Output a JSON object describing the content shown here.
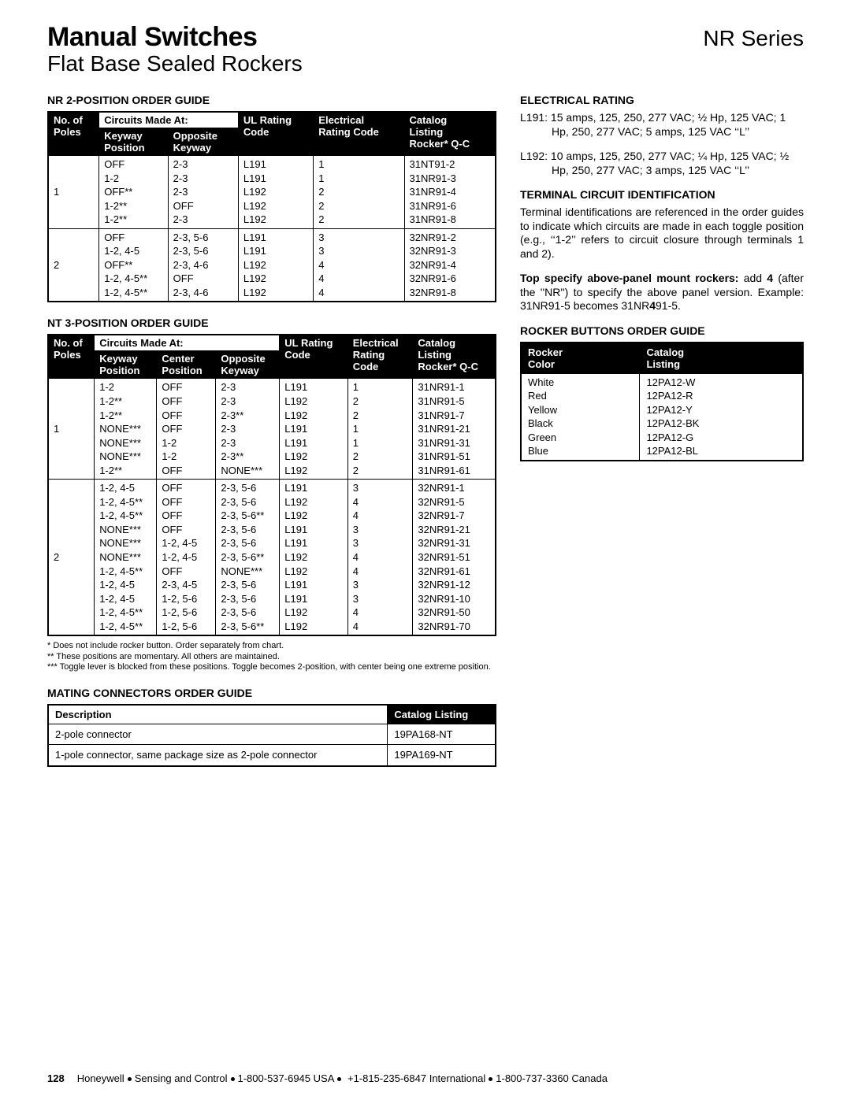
{
  "header": {
    "title1": "Manual Switches",
    "title2": "Flat Base Sealed Rockers",
    "series": "NR Series"
  },
  "nr2": {
    "title": "NR 2-POSITION ORDER GUIDE",
    "span_label": "Circuits Made At:",
    "cols": {
      "poles": "No. of\nPoles",
      "keyway": "Keyway\nPosition",
      "opp": "Opposite\nKeyway",
      "ul": "UL Rating\nCode",
      "elec": "Electrical\nRating Code",
      "cat": "Catalog\nListing\nRocker* Q-C"
    },
    "groups": [
      {
        "poles": "1",
        "keyway": "OFF\n1-2\nOFF**\n1-2**\n1-2**",
        "opp": "2-3\n2-3\n2-3\nOFF\n2-3",
        "ul": "L191\nL191\nL192\nL192\nL192",
        "elec": "1\n1\n2\n2\n2",
        "cat": "31NT91-2\n31NR91-3\n31NR91-4\n31NR91-6\n31NR91-8"
      },
      {
        "poles": "2",
        "keyway": "OFF\n1-2, 4-5\nOFF**\n1-2, 4-5**\n1-2, 4-5**",
        "opp": "2-3, 5-6\n2-3, 5-6\n2-3, 4-6\nOFF\n2-3, 4-6",
        "ul": "L191\nL191\nL192\nL192\nL192",
        "elec": "3\n3\n4\n4\n4",
        "cat": "32NR91-2\n32NR91-3\n32NR91-4\n32NR91-6\n32NR91-8"
      }
    ]
  },
  "nt3": {
    "title": "NT 3-POSITION ORDER GUIDE",
    "span_label": "Circuits Made At:",
    "cols": {
      "poles": "No. of\nPoles",
      "keyway": "Keyway\nPosition",
      "center": "Center\nPosition",
      "opp": "Opposite\nKeyway",
      "ul": "UL Rating\nCode",
      "elec": "Electrical\nRating\nCode",
      "cat": "Catalog\nListing\nRocker* Q-C"
    },
    "groups": [
      {
        "poles": "1",
        "keyway": "1-2\n1-2**\n1-2**\nNONE***\nNONE***\nNONE***\n1-2**",
        "center": "OFF\nOFF\nOFF\nOFF\n1-2\n1-2\nOFF",
        "opp": "2-3\n2-3\n2-3**\n2-3\n2-3\n2-3**\nNONE***",
        "ul": "L191\nL192\nL192\nL191\nL191\nL192\nL192",
        "elec": "1\n2\n2\n1\n1\n2\n2",
        "cat": "31NR91-1\n31NR91-5\n31NR91-7\n31NR91-21\n31NR91-31\n31NR91-51\n31NR91-61"
      },
      {
        "poles": "2",
        "keyway": "1-2, 4-5\n1-2, 4-5**\n1-2, 4-5**\nNONE***\nNONE***\nNONE***\n1-2, 4-5**\n1-2, 4-5\n1-2, 4-5\n1-2, 4-5**\n1-2, 4-5**",
        "center": "OFF\nOFF\nOFF\nOFF\n1-2, 4-5\n1-2, 4-5\nOFF\n2-3, 4-5\n1-2, 5-6\n1-2, 5-6\n1-2, 5-6",
        "opp": "2-3, 5-6\n2-3, 5-6\n2-3, 5-6**\n2-3, 5-6\n2-3, 5-6\n2-3, 5-6**\nNONE***\n2-3, 5-6\n2-3, 5-6\n2-3, 5-6\n2-3, 5-6**",
        "ul": "L191\nL192\nL192\nL191\nL191\nL192\nL192\nL191\nL191\nL192\nL192",
        "elec": "3\n4\n4\n3\n3\n4\n4\n3\n3\n4\n4",
        "cat": "32NR91-1\n32NR91-5\n32NR91-7\n32NR91-21\n32NR91-31\n32NR91-51\n32NR91-61\n32NR91-12\n32NR91-10\n32NR91-50\n32NR91-70"
      }
    ]
  },
  "footnotes": {
    "a": "* Does not include rocker button. Order separately from chart.",
    "b": "** These positions are momentary. All others are maintained.",
    "c": "*** Toggle lever is blocked from these positions. Toggle becomes 2-position, with center being one extreme position."
  },
  "mating": {
    "title": "MATING CONNECTORS ORDER GUIDE",
    "cols": {
      "desc": "Description",
      "cat": "Catalog Listing"
    },
    "rows": [
      {
        "desc": "2-pole connector",
        "cat": "19PA168-NT"
      },
      {
        "desc": "1-pole connector, same package size as 2-pole connector",
        "cat": "19PA169-NT"
      }
    ]
  },
  "right": {
    "elec_title": "ELECTRICAL RATING",
    "l191": "L191: 15 amps, 125, 250, 277 VAC; ½ Hp, 125 VAC; 1 Hp, 250, 277 VAC; 5 amps, 125 VAC ‘‘L’’",
    "l192": "L192: 10 amps, 125, 250, 277 VAC; ¼ Hp, 125 VAC; ½ Hp, 250, 277 VAC; 3 amps, 125 VAC ‘‘L’’",
    "term_title": "TERMINAL CIRCUIT IDENTIFICATION",
    "term_body": "Terminal identifications are referenced in the order guides to indicate which circuits are made in each toggle position (e.g., ‘‘1-2’’ refers to circuit closure through terminals 1 and 2).",
    "top_spec": "Top specify above-panel mount rockers: add 4 (after the ‘‘NR’’) to specify the above panel version. Example: 31NR91-5 becomes 31NR491-5.",
    "rocker_title": "ROCKER BUTTONS ORDER GUIDE",
    "rocker_cols": {
      "color": "Rocker\nColor",
      "cat": "Catalog\nListing"
    },
    "rocker_rows": {
      "colors": "White\nRed\nYellow\nBlack\nGreen\nBlue",
      "cats": "12PA12-W\n12PA12-R\n12PA12-Y\n12PA12-BK\n12PA12-G\n12PA12-BL"
    }
  },
  "footer": {
    "page": "128",
    "company": "Honeywell",
    "div": "Sensing and Control",
    "usa": "1-800-537-6945 USA",
    "intl": "+1-815-235-6847 International",
    "can": "1-800-737-3360 Canada"
  }
}
